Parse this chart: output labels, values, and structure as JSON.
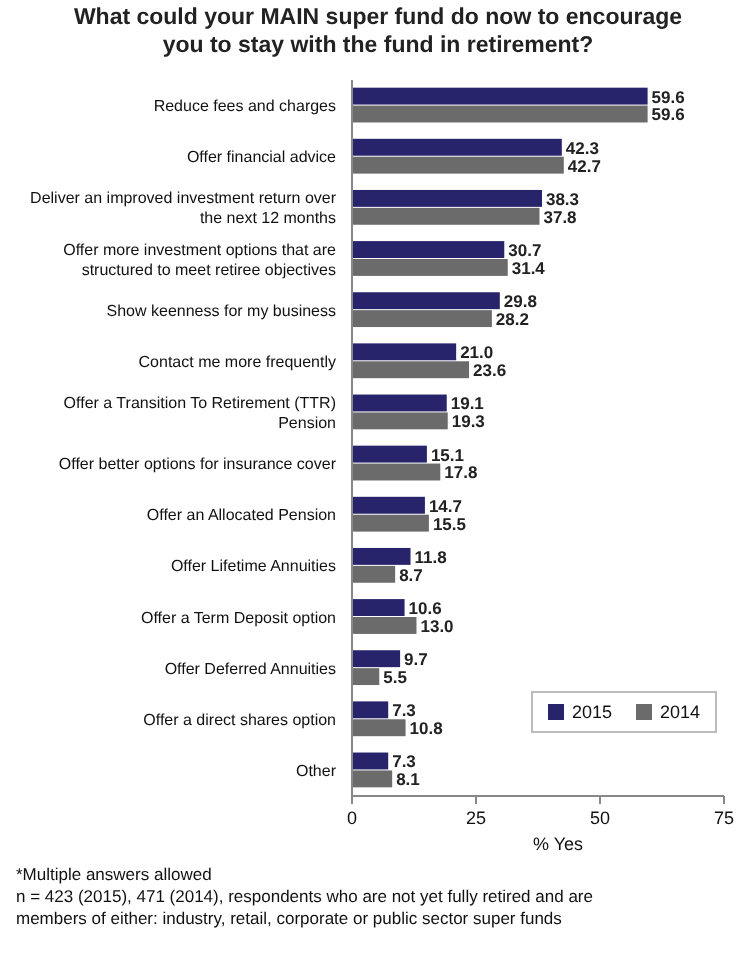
{
  "chart_data": {
    "type": "bar",
    "orientation": "horizontal",
    "title": "What could your MAIN super fund do now to encourage you to stay with the fund in retirement?",
    "categories": [
      "Reduce fees and charges",
      "Offer financial advice",
      "Deliver an improved investment return over the next 12 months",
      "Offer more investment options that are structured to meet retiree objectives",
      "Show keenness for my business",
      "Contact me more frequently",
      "Offer a Transition To Retirement (TTR) Pension",
      "Offer better options for insurance cover",
      "Offer an Allocated Pension",
      "Offer Lifetime Annuities",
      "Offer a Term Deposit option",
      "Offer Deferred Annuities",
      "Offer a direct shares option",
      "Other"
    ],
    "series": [
      {
        "name": "2015",
        "color": "#27246b",
        "values": [
          59.6,
          42.3,
          38.3,
          30.7,
          29.8,
          21.0,
          19.1,
          15.1,
          14.7,
          11.8,
          10.6,
          9.7,
          7.3,
          7.3
        ]
      },
      {
        "name": "2014",
        "color": "#6b6b6b",
        "values": [
          59.6,
          42.7,
          37.8,
          31.4,
          28.2,
          23.6,
          19.3,
          17.8,
          15.5,
          8.7,
          13.0,
          5.5,
          10.8,
          8.1
        ]
      }
    ],
    "value_labels": [
      [
        "59.6",
        "42.3",
        "38.3",
        "30.7",
        "29.8",
        "21.0",
        "19.1",
        "15.1",
        "14.7",
        "11.8",
        "10.6",
        "9.7",
        "7.3",
        "7.3"
      ],
      [
        "59.6",
        "42.7",
        "37.8",
        "31.4",
        "28.2",
        "23.6",
        "19.3",
        "17.8",
        "15.5",
        "8.7",
        "13.0",
        "5.5",
        "10.8",
        "8.1"
      ]
    ],
    "xlim": [
      0,
      75
    ],
    "xticks": [
      0,
      25,
      50,
      75
    ],
    "xlabel": "% Yes",
    "legend": "bottom right",
    "grid": false,
    "annotations": [
      "*Multiple answers allowed",
      "n = 423 (2015), 471 (2014), respondents who are not yet fully retired and are members of either: industry, retail, corporate or public sector super funds"
    ]
  }
}
